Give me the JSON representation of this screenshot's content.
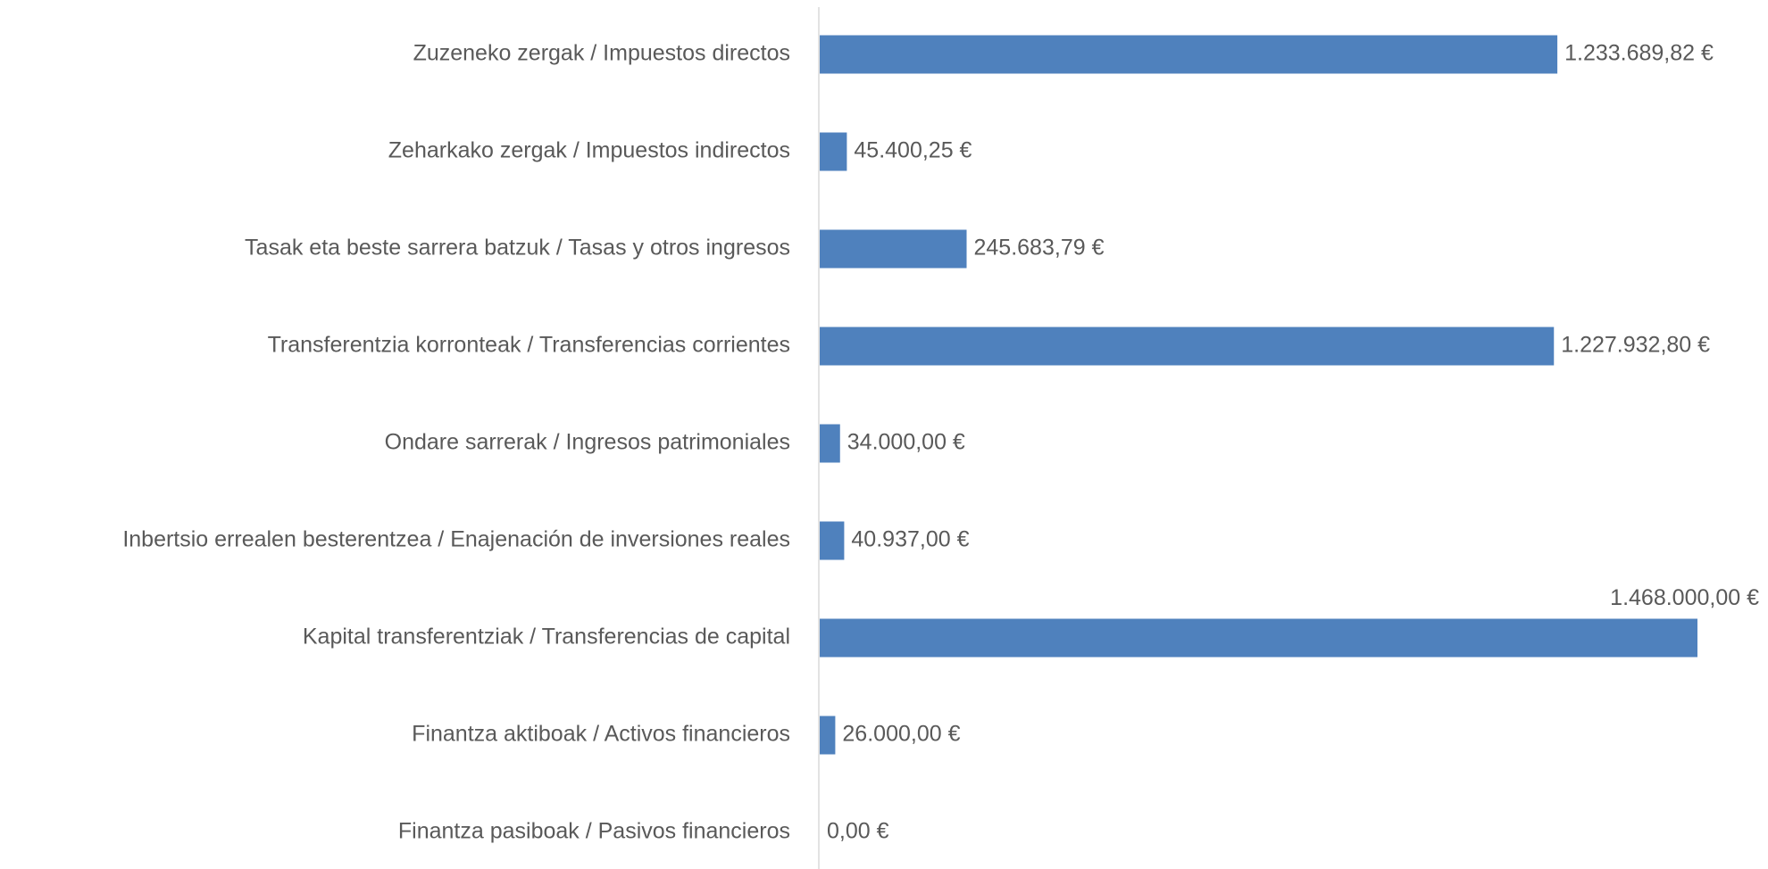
{
  "chart_data": {
    "type": "bar",
    "orientation": "horizontal",
    "categories": [
      "Zuzeneko zergak / Impuestos directos",
      "Zeharkako zergak / Impuestos indirectos",
      "Tasak eta beste sarrera batzuk / Tasas y otros ingresos",
      "Transferentzia korronteak / Transferencias corrientes",
      "Ondare sarrerak / Ingresos patrimoniales",
      "Inbertsio errealen besterentzea / Enajenación de inversiones reales",
      "Kapital transferentziak / Transferencias de capital",
      "Finantza aktiboak / Activos financieros",
      "Finantza pasiboak / Pasivos financieros"
    ],
    "values": [
      1233689.82,
      45400.25,
      245683.79,
      1227932.8,
      34000.0,
      40937.0,
      1468000.0,
      26000.0,
      0
    ],
    "value_labels": [
      "1.233.689,82 €",
      "45.400,25 €",
      "245.683,79 €",
      "1.227.932,80 €",
      "34.000,00 €",
      "40.937,00 €",
      "1.468.000,00 €",
      "26.000,00 €",
      "0,00 €"
    ],
    "color": "#4f81bd"
  }
}
